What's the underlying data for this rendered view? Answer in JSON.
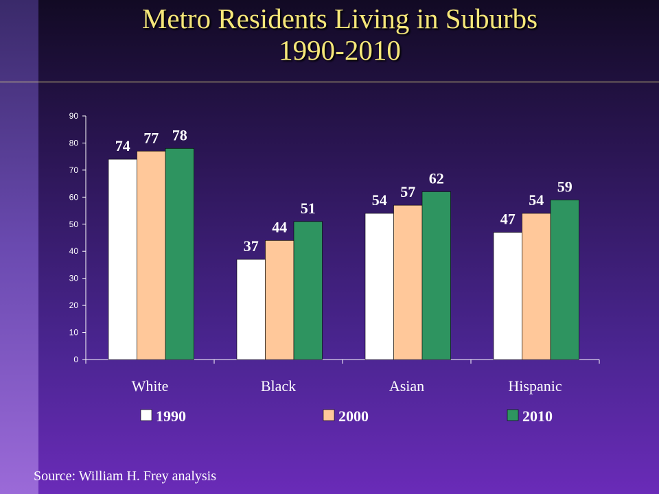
{
  "title": {
    "line1": "Metro Residents Living in Suburbs",
    "line2": "1990-2010"
  },
  "source": "Source: William H. Frey analysis",
  "colors": {
    "series_1990": "#ffffff",
    "series_2000": "#ffc89a",
    "series_2010": "#2e9460",
    "axis": "#ffffff",
    "title": "#f6e77a"
  },
  "chart_data": {
    "type": "bar",
    "title": "",
    "xlabel": "",
    "ylabel": "",
    "ylim": [
      0,
      90
    ],
    "yticks": [
      0,
      10,
      20,
      30,
      40,
      50,
      60,
      70,
      80,
      90
    ],
    "grid": false,
    "legend_position": "bottom",
    "categories": [
      "White",
      "Black",
      "Asian",
      "Hispanic"
    ],
    "series": [
      {
        "name": "1990",
        "values": [
          74,
          37,
          54,
          47
        ]
      },
      {
        "name": "2000",
        "values": [
          77,
          44,
          57,
          54
        ]
      },
      {
        "name": "2010",
        "values": [
          78,
          51,
          62,
          59
        ]
      }
    ]
  }
}
